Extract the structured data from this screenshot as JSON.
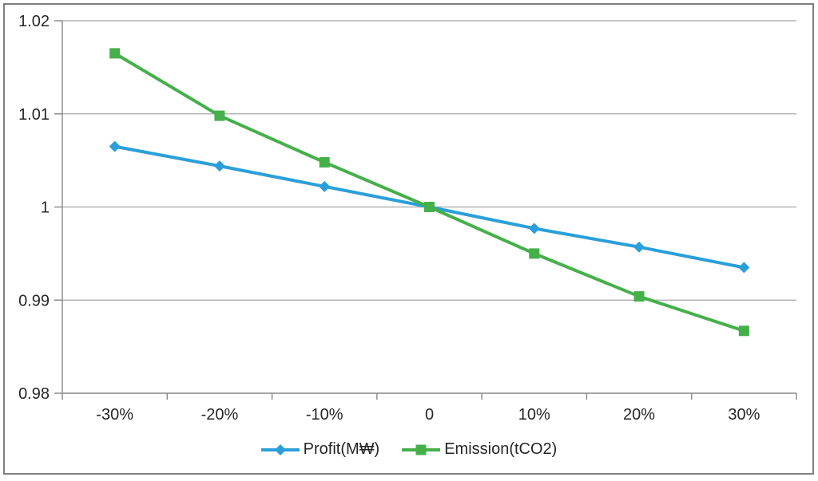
{
  "chart_data": {
    "type": "line",
    "categories": [
      "-30%",
      "-20%",
      "-10%",
      "0",
      "10%",
      "20%",
      "30%"
    ],
    "series": [
      {
        "name": "Profit(M₩)",
        "color": "#2B9FD9",
        "marker": "diamond",
        "values": [
          1.0065,
          1.0044,
          1.0022,
          1.0,
          0.9977,
          0.9957,
          0.9935
        ]
      },
      {
        "name": "Emission(tCO2)",
        "color": "#45B04A",
        "marker": "square",
        "values": [
          1.0165,
          1.0098,
          1.0048,
          1.0,
          0.995,
          0.9904,
          0.9867
        ]
      }
    ],
    "title": "",
    "xlabel": "",
    "ylabel": "",
    "ylim": [
      0.98,
      1.02
    ],
    "yticks": [
      1.02,
      1.01,
      1.0,
      0.99,
      0.98
    ],
    "ytick_labels": [
      "1.02",
      "1.01",
      "1",
      "0.99",
      "0.98"
    ],
    "grid": true,
    "legend_position": "bottom"
  },
  "colors": {
    "grid": "#a6a6a6",
    "axis": "#8e8e8e",
    "border": "#7f7f7f",
    "text": "#262626",
    "background": "#ffffff"
  }
}
